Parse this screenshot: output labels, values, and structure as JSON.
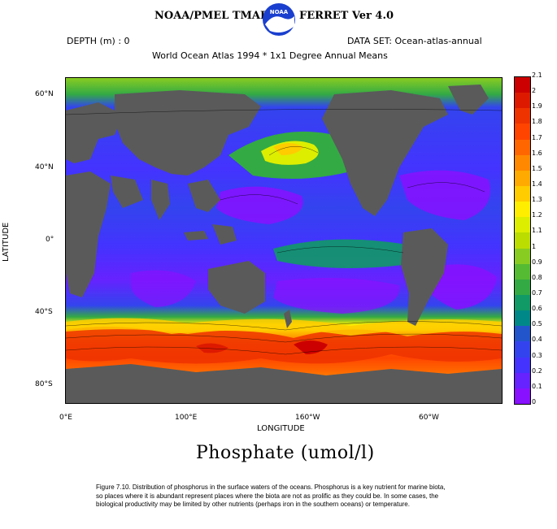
{
  "header": {
    "left_title": "NOAA/PMEL TMAP",
    "right_title": "FERRET Ver 4.0",
    "logo_text": "NOAA"
  },
  "meta": {
    "depth": "DEPTH (m) : 0",
    "dataset": "DATA SET: Ocean-atlas-annual",
    "subtitle": "World Ocean Atlas 1994 * 1x1 Degree Annual Means"
  },
  "axes": {
    "lat_ticks": [
      "60°N",
      "40°N",
      "0°",
      "40°S",
      "80°S"
    ],
    "lon_ticks": [
      "0°E",
      "100°E",
      "160°W",
      "60°W"
    ],
    "xlabel": "LONGITUDE",
    "ylabel": "LATITUDE"
  },
  "colorbar": {
    "levels": [
      "2.1",
      "2",
      "1.9",
      "1.8",
      "1.7",
      "1.6",
      "1.5",
      "1.4",
      "1.3",
      "1.2",
      "1.1",
      "1",
      "0.9",
      "0.8",
      "0.7",
      "0.6",
      "0.5",
      "0.4",
      "0.3",
      "0.2",
      "0.1",
      "0"
    ],
    "colors": [
      "#cc0000",
      "#dd1a00",
      "#ee3300",
      "#ff4400",
      "#ff6600",
      "#ff8800",
      "#ffaa00",
      "#ffcc00",
      "#ffee00",
      "#ddee00",
      "#bbdd00",
      "#88cc22",
      "#55bb33",
      "#33aa44",
      "#119966",
      "#008888",
      "#2255cc",
      "#3344ee",
      "#4433ff",
      "#6622ff",
      "#8811ff"
    ]
  },
  "map_colors": {
    "land": "#5a5a5a",
    "ocean_low": "#9922ff",
    "ocean_mid": "#3333ee",
    "ocean_blue2": "#2b5ee0",
    "green": "#119966",
    "green_light": "#66cc33",
    "yellow": "#ffee00",
    "orange": "#ff8800",
    "red": "#ee2200",
    "darkred": "#cc0000"
  },
  "title": "Phosphate (umol/l)",
  "caption": "Figure 7.10.  Distribution of phosphorus in the surface waters of the oceans.  Phosphorus is a key nutrient for marine biota, so places where it is abundant represent places where the biota are not as prolific as they could be.  In some cases, the biological productivity may be limited by other nutrients (perhaps iron in the southern oceans) or temperature."
}
